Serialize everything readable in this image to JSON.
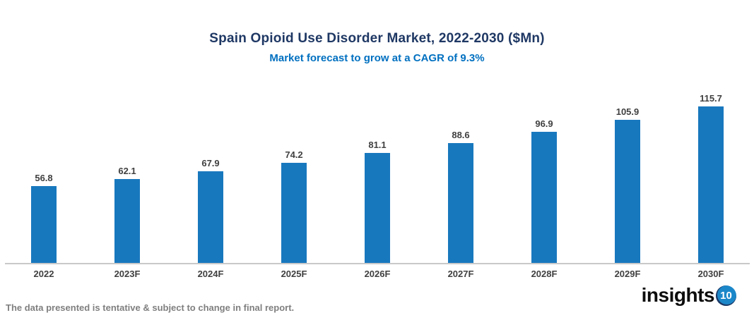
{
  "header": {
    "title": "Spain Opioid Use Disorder Market, 2022-2030 ($Mn)",
    "subtitle": "Market forecast to grow at a CAGR of 9.3%"
  },
  "chart_data": {
    "type": "bar",
    "title": "Spain Opioid Use Disorder Market, 2022-2030 ($Mn)",
    "subtitle": "Market forecast to grow at a CAGR of 9.3%",
    "categories": [
      "2022",
      "2023F",
      "2024F",
      "2025F",
      "2026F",
      "2027F",
      "2028F",
      "2029F",
      "2030F"
    ],
    "values": [
      56.8,
      62.1,
      67.9,
      74.2,
      81.1,
      88.6,
      96.9,
      105.9,
      115.7
    ],
    "xlabel": "",
    "ylabel": "",
    "ylim": [
      0,
      130
    ],
    "grid": false,
    "legend": false,
    "data_labels": true,
    "bar_color": "#1878BE"
  },
  "footer": {
    "disclaimer": "The data presented is tentative & subject to change in final report.",
    "logo_text": "insights",
    "logo_badge": "10"
  },
  "colors": {
    "title": "#1F3864",
    "subtitle": "#0070C0",
    "bar": "#1878BE",
    "value_label": "#404040",
    "axis_label": "#404040",
    "axis_line": "#C9C9C9",
    "disclaimer": "#7F7F7F",
    "logo_badge_bg": "#1B87C9"
  }
}
